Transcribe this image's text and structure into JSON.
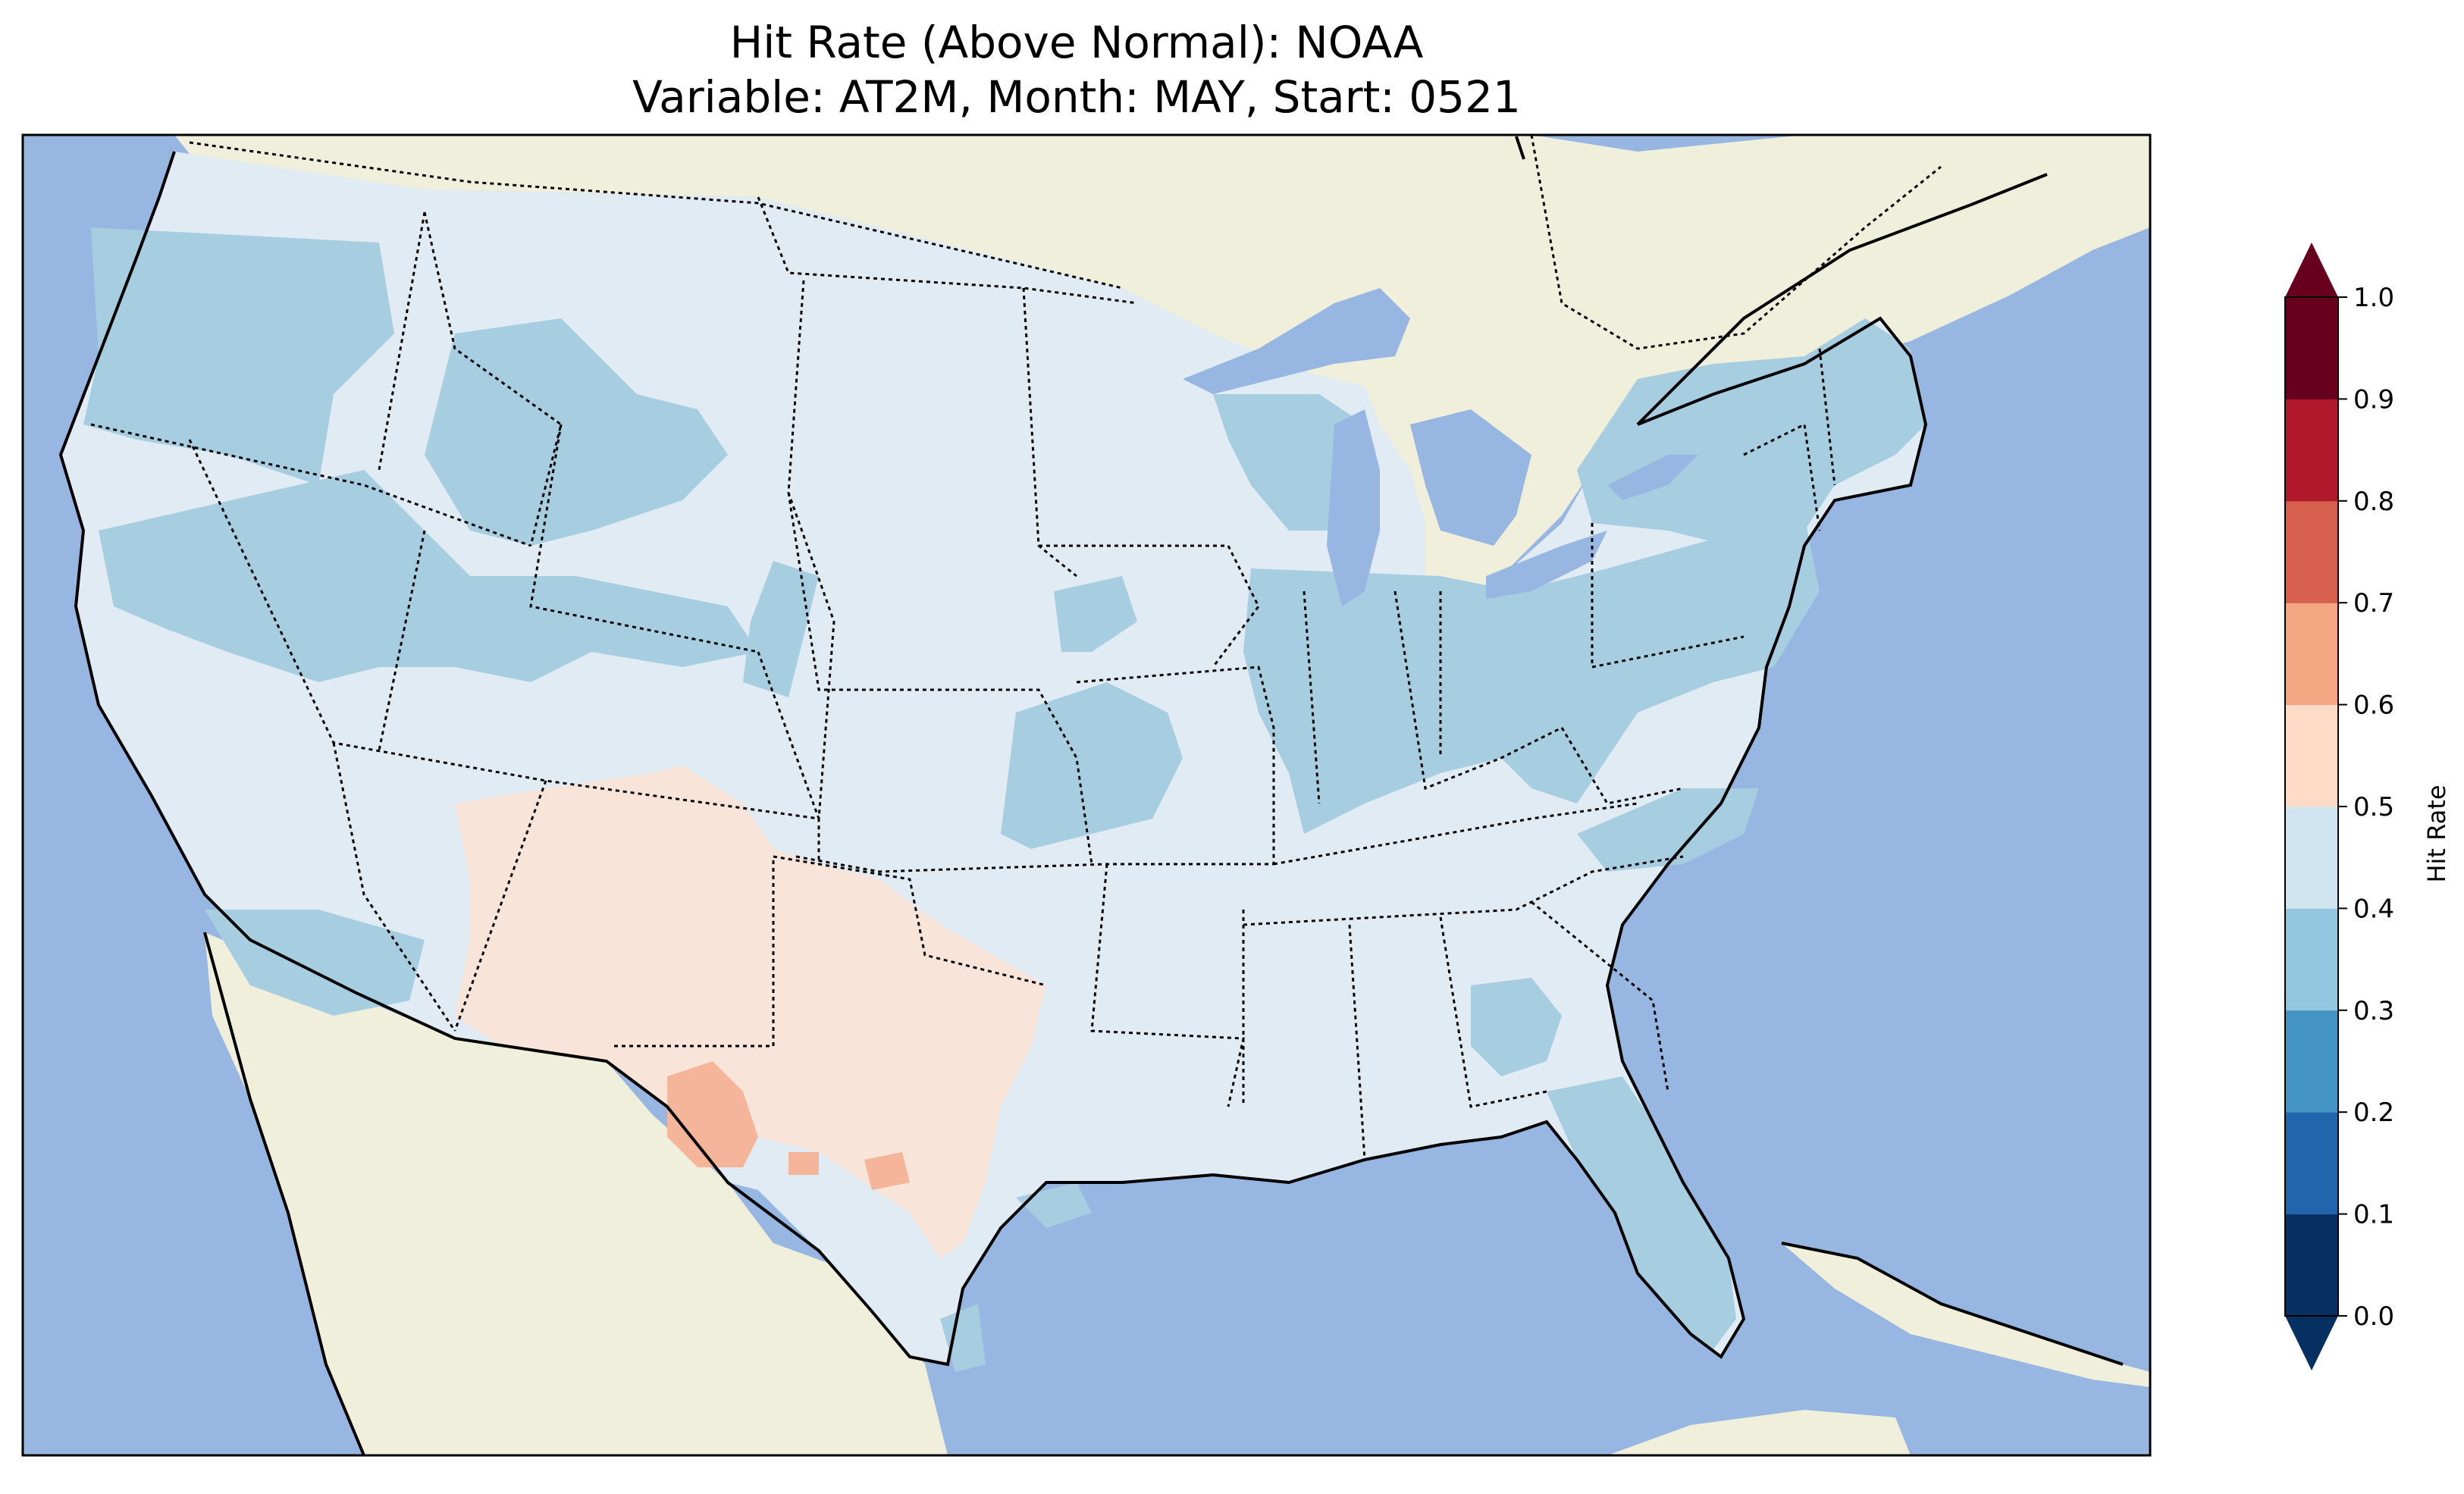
{
  "title": {
    "line1": "Hit Rate (Above Normal): NOAA",
    "line2": "Variable: AT2M, Month: MAY, Start: 0521"
  },
  "colorbar": {
    "label": "Hit Rate",
    "ticks": [
      "0.0",
      "0.1",
      "0.2",
      "0.3",
      "0.4",
      "0.5",
      "0.6",
      "0.7",
      "0.8",
      "0.9",
      "1.0"
    ],
    "colors": [
      "#053061",
      "#2166ac",
      "#4393c3",
      "#92c5de",
      "#d1e5f0",
      "#fddbc7",
      "#f4a582",
      "#d6604d",
      "#b2182b",
      "#67001f"
    ],
    "under_color": "#053061",
    "over_color": "#67001f"
  },
  "map_colors": {
    "ocean": "#97b6e1",
    "land": "#efefdb",
    "low_band": "#a7cde1",
    "mid_band": "#e0ebf3",
    "warm_band": "#f9e4da",
    "hot_band": "#f5b59b"
  }
}
